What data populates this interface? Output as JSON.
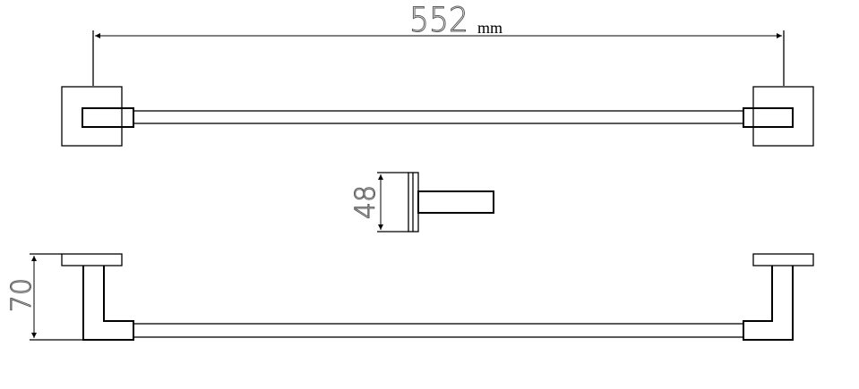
{
  "dimensions": {
    "length": {
      "value": "552",
      "unit": "mm"
    },
    "bracket_height": {
      "value": "48"
    },
    "depth": {
      "value": "70"
    }
  },
  "colors": {
    "line": "#000000",
    "dimension_text": "#555555",
    "background": "#ffffff"
  }
}
